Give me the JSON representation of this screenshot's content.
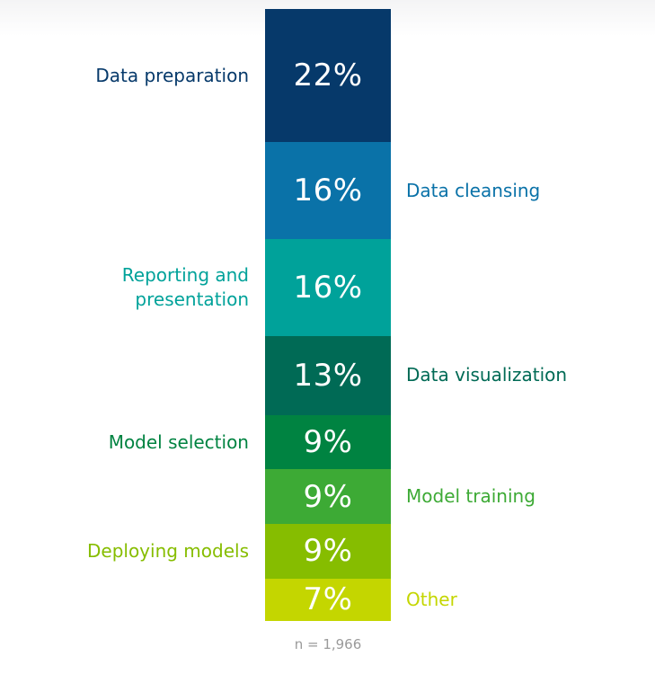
{
  "chart_data": {
    "type": "bar",
    "stacked": true,
    "orientation": "vertical-single-column",
    "segments": [
      {
        "label": "Data preparation",
        "value": 22,
        "display": "22%",
        "color": "#06396a",
        "label_side": "left"
      },
      {
        "label": "Data cleansing",
        "value": 16,
        "display": "16%",
        "color": "#0a72a8",
        "label_side": "right"
      },
      {
        "label": "Reporting and\npresentation",
        "value": 16,
        "display": "16%",
        "color": "#00a29a",
        "label_side": "left"
      },
      {
        "label": "Data visualization",
        "value": 13,
        "display": "13%",
        "color": "#006a55",
        "label_side": "right"
      },
      {
        "label": "Model selection",
        "value": 9,
        "display": "9%",
        "color": "#008341",
        "label_side": "left"
      },
      {
        "label": "Model training",
        "value": 9,
        "display": "9%",
        "color": "#3daa35",
        "label_side": "right"
      },
      {
        "label": "Deploying models",
        "value": 9,
        "display": "9%",
        "color": "#86bd00",
        "label_side": "left"
      },
      {
        "label": "Other",
        "value": 7,
        "display": "7%",
        "color": "#c4d600",
        "label_side": "right"
      }
    ],
    "label_colors": [
      "#06396a",
      "#0a72a8",
      "#00a29a",
      "#006a55",
      "#008341",
      "#3daa35",
      "#86bd00",
      "#c4d600"
    ],
    "note": "n = 1,966"
  }
}
